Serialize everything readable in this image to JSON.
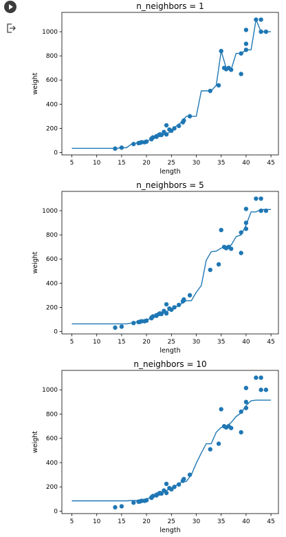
{
  "cell": {
    "run_icon": "play-icon",
    "output_icon": "output-arrow-icon"
  },
  "colors": {
    "series": "#1f77b4"
  },
  "chart_data": [
    {
      "type": "scatter+line",
      "title": "n_neighbors = 1",
      "xlabel": "length",
      "ylabel": "weight",
      "xlim": [
        3.0,
        46.5
      ],
      "ylim": [
        -20,
        1160
      ],
      "xticks": [
        5,
        10,
        15,
        20,
        25,
        30,
        35,
        40,
        45
      ],
      "yticks": [
        0,
        200,
        400,
        600,
        800,
        1000
      ],
      "grid": false,
      "series": [
        {
          "kind": "scatter",
          "points": [
            [
              13.7,
              32
            ],
            [
              15,
              40
            ],
            [
              17.4,
              70
            ],
            [
              18.4,
              78
            ],
            [
              18.7,
              80
            ],
            [
              19,
              85
            ],
            [
              19.6,
              85
            ],
            [
              20,
              90
            ],
            [
              21,
              110
            ],
            [
              21,
              115
            ],
            [
              21.3,
              125
            ],
            [
              22,
              130
            ],
            [
              22,
              135
            ],
            [
              22.5,
              145
            ],
            [
              22.7,
              150
            ],
            [
              23,
              145
            ],
            [
              23.5,
              170
            ],
            [
              24,
              150
            ],
            [
              24,
              225
            ],
            [
              24.6,
              190
            ],
            [
              25,
              180
            ],
            [
              25.6,
              200
            ],
            [
              26.5,
              220
            ],
            [
              27.3,
              250
            ],
            [
              27.5,
              265
            ],
            [
              28.7,
              300
            ],
            [
              32.8,
              510
            ],
            [
              34.5,
              556
            ],
            [
              35,
              840
            ],
            [
              35.6,
              700
            ],
            [
              36,
              690
            ],
            [
              36.5,
              700
            ],
            [
              37,
              685
            ],
            [
              39,
              650
            ],
            [
              39,
              820
            ],
            [
              40,
              850
            ],
            [
              40,
              900
            ],
            [
              40,
              1015
            ],
            [
              42,
              1100
            ],
            [
              43,
              1000
            ],
            [
              43,
              1100
            ],
            [
              44,
              1000
            ]
          ]
        },
        {
          "kind": "line",
          "points": [
            [
              5,
              35
            ],
            [
              14,
              35
            ],
            [
              15,
              40
            ],
            [
              16,
              40
            ],
            [
              17,
              70
            ],
            [
              18,
              78
            ],
            [
              19,
              85
            ],
            [
              20,
              90
            ],
            [
              21,
              115
            ],
            [
              22,
              135
            ],
            [
              23,
              145
            ],
            [
              24,
              150
            ],
            [
              25,
              180
            ],
            [
              26,
              220
            ],
            [
              27,
              250
            ],
            [
              28,
              300
            ],
            [
              29,
              300
            ],
            [
              30,
              300
            ],
            [
              31,
              510
            ],
            [
              32,
              510
            ],
            [
              33,
              510
            ],
            [
              34,
              556
            ],
            [
              35,
              840
            ],
            [
              36,
              700
            ],
            [
              37,
              685
            ],
            [
              38,
              820
            ],
            [
              39,
              820
            ],
            [
              40,
              850
            ],
            [
              41,
              850
            ],
            [
              42,
              1100
            ],
            [
              43,
              1000
            ],
            [
              44,
              1000
            ],
            [
              45,
              1000
            ]
          ]
        }
      ]
    },
    {
      "type": "scatter+line",
      "title": "n_neighbors = 5",
      "xlabel": "length",
      "ylabel": "weight",
      "xlim": [
        3.0,
        46.5
      ],
      "ylim": [
        -20,
        1160
      ],
      "xticks": [
        5,
        10,
        15,
        20,
        25,
        30,
        35,
        40,
        45
      ],
      "yticks": [
        0,
        200,
        400,
        600,
        800,
        1000
      ],
      "grid": false,
      "series": [
        {
          "kind": "scatter",
          "points": [
            [
              13.7,
              32
            ],
            [
              15,
              40
            ],
            [
              17.4,
              70
            ],
            [
              18.4,
              78
            ],
            [
              18.7,
              80
            ],
            [
              19,
              85
            ],
            [
              19.6,
              85
            ],
            [
              20,
              90
            ],
            [
              21,
              110
            ],
            [
              21,
              115
            ],
            [
              21.3,
              125
            ],
            [
              22,
              130
            ],
            [
              22,
              135
            ],
            [
              22.5,
              145
            ],
            [
              22.7,
              150
            ],
            [
              23,
              145
            ],
            [
              23.5,
              170
            ],
            [
              24,
              150
            ],
            [
              24,
              225
            ],
            [
              24.6,
              190
            ],
            [
              25,
              180
            ],
            [
              25.6,
              200
            ],
            [
              26.5,
              220
            ],
            [
              27.3,
              250
            ],
            [
              27.5,
              265
            ],
            [
              28.7,
              300
            ],
            [
              32.8,
              510
            ],
            [
              34.5,
              556
            ],
            [
              35,
              840
            ],
            [
              35.6,
              700
            ],
            [
              36,
              690
            ],
            [
              36.5,
              700
            ],
            [
              37,
              685
            ],
            [
              39,
              650
            ],
            [
              39,
              820
            ],
            [
              40,
              850
            ],
            [
              40,
              900
            ],
            [
              40,
              1015
            ],
            [
              42,
              1100
            ],
            [
              43,
              1000
            ],
            [
              43,
              1100
            ],
            [
              44,
              1000
            ]
          ]
        },
        {
          "kind": "line",
          "points": [
            [
              5,
              63
            ],
            [
              16,
              63
            ],
            [
              17,
              70
            ],
            [
              18,
              80
            ],
            [
              19,
              86
            ],
            [
              20,
              95
            ],
            [
              21,
              112
            ],
            [
              22,
              130
            ],
            [
              23,
              145
            ],
            [
              24,
              165
            ],
            [
              25,
              185
            ],
            [
              26,
              205
            ],
            [
              27,
              230
            ],
            [
              28,
              255
            ],
            [
              29,
              255
            ],
            [
              30,
              325
            ],
            [
              31,
              380
            ],
            [
              32,
              590
            ],
            [
              33,
              660
            ],
            [
              34,
              665
            ],
            [
              35,
              690
            ],
            [
              36,
              705
            ],
            [
              37,
              715
            ],
            [
              38,
              785
            ],
            [
              39,
              800
            ],
            [
              40,
              880
            ],
            [
              41,
              990
            ],
            [
              42,
              990
            ],
            [
              43,
              1010
            ],
            [
              44,
              1010
            ],
            [
              45,
              1010
            ]
          ]
        }
      ]
    },
    {
      "type": "scatter+line",
      "title": "n_neighbors = 10",
      "xlabel": "length",
      "ylabel": "weight",
      "xlim": [
        3.0,
        46.5
      ],
      "ylim": [
        -20,
        1160
      ],
      "xticks": [
        5,
        10,
        15,
        20,
        25,
        30,
        35,
        40,
        45
      ],
      "yticks": [
        0,
        200,
        400,
        600,
        800,
        1000
      ],
      "grid": false,
      "series": [
        {
          "kind": "scatter",
          "points": [
            [
              13.7,
              32
            ],
            [
              15,
              40
            ],
            [
              17.4,
              70
            ],
            [
              18.4,
              78
            ],
            [
              18.7,
              80
            ],
            [
              19,
              85
            ],
            [
              19.6,
              85
            ],
            [
              20,
              90
            ],
            [
              21,
              110
            ],
            [
              21,
              115
            ],
            [
              21.3,
              125
            ],
            [
              22,
              130
            ],
            [
              22,
              135
            ],
            [
              22.5,
              145
            ],
            [
              22.7,
              150
            ],
            [
              23,
              145
            ],
            [
              23.5,
              170
            ],
            [
              24,
              150
            ],
            [
              24,
              225
            ],
            [
              24.6,
              190
            ],
            [
              25,
              180
            ],
            [
              25.6,
              200
            ],
            [
              26.5,
              220
            ],
            [
              27.3,
              250
            ],
            [
              27.5,
              265
            ],
            [
              28.7,
              300
            ],
            [
              32.8,
              510
            ],
            [
              34.5,
              556
            ],
            [
              35,
              840
            ],
            [
              35.6,
              700
            ],
            [
              36,
              690
            ],
            [
              36.5,
              700
            ],
            [
              37,
              685
            ],
            [
              39,
              650
            ],
            [
              39,
              820
            ],
            [
              40,
              850
            ],
            [
              40,
              900
            ],
            [
              40,
              1015
            ],
            [
              42,
              1100
            ],
            [
              43,
              1000
            ],
            [
              43,
              1100
            ],
            [
              44,
              1000
            ]
          ]
        },
        {
          "kind": "line",
          "points": [
            [
              5,
              85
            ],
            [
              16,
              85
            ],
            [
              17,
              88
            ],
            [
              18,
              88
            ],
            [
              19,
              95
            ],
            [
              20,
              100
            ],
            [
              21,
              115
            ],
            [
              22,
              130
            ],
            [
              23,
              150
            ],
            [
              24,
              170
            ],
            [
              25,
              190
            ],
            [
              26,
              215
            ],
            [
              27,
              240
            ],
            [
              28,
              245
            ],
            [
              29,
              300
            ],
            [
              30,
              395
            ],
            [
              31,
              480
            ],
            [
              32,
              555
            ],
            [
              33,
              555
            ],
            [
              34,
              650
            ],
            [
              35,
              690
            ],
            [
              36,
              700
            ],
            [
              37,
              730
            ],
            [
              38,
              780
            ],
            [
              39,
              810
            ],
            [
              40,
              870
            ],
            [
              41,
              910
            ],
            [
              42,
              915
            ],
            [
              43,
              915
            ],
            [
              44,
              915
            ],
            [
              45,
              915
            ]
          ]
        }
      ]
    }
  ]
}
